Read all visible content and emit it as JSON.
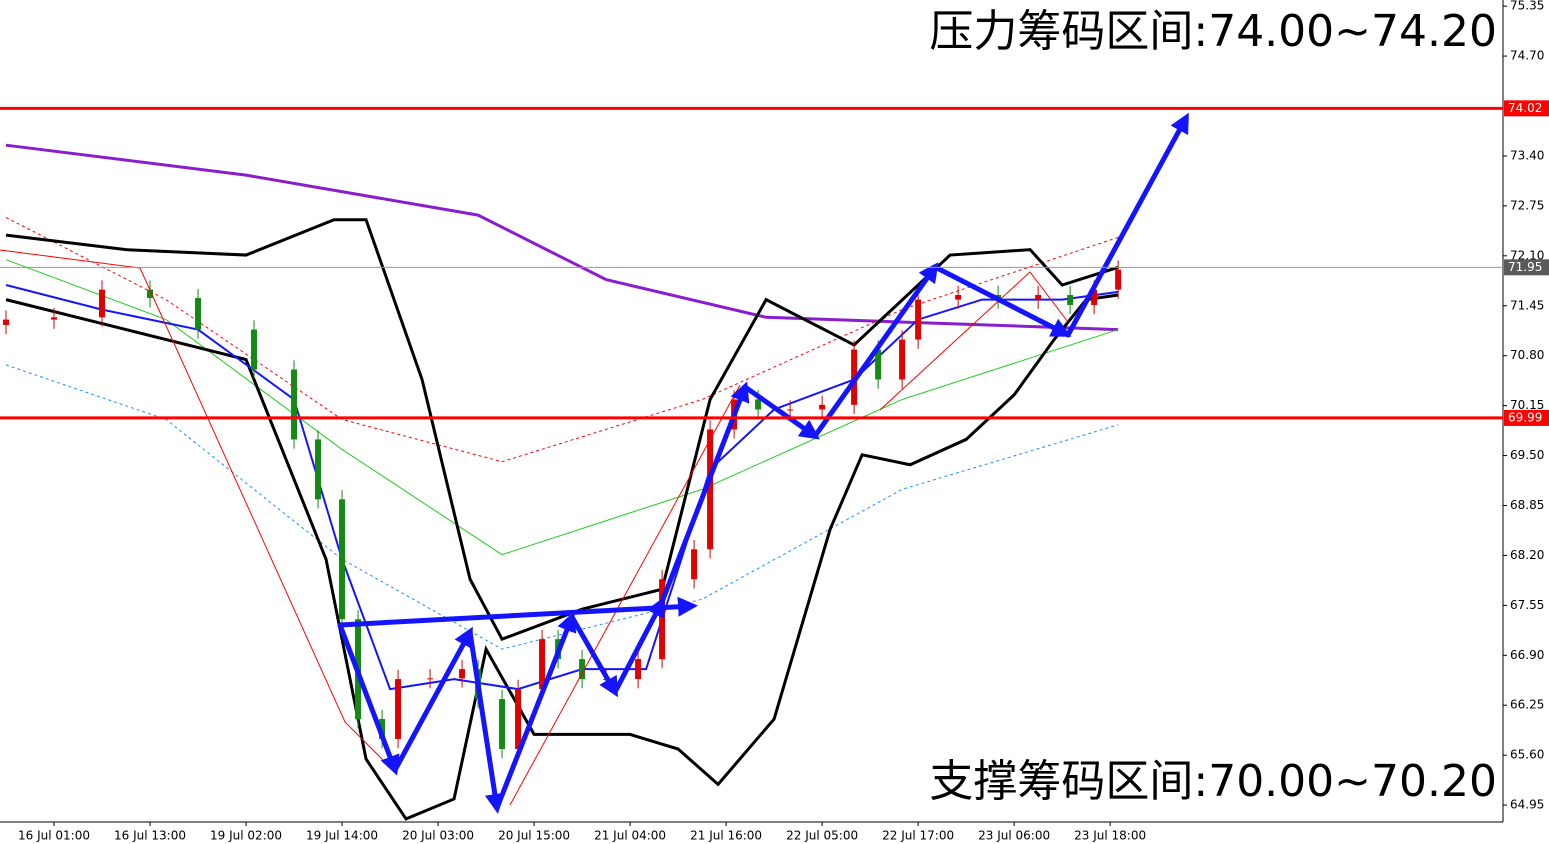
{
  "chart_data": {
    "type": "candlestick",
    "xlim": [
      -0.75,
      187.1
    ],
    "ylim": [
      64.73,
      75.43
    ],
    "yticks": [
      64.95,
      {
        "value": 65.6,
        "label": "65.60"
      },
      66.25,
      {
        "value": 66.9,
        "label": "66.90"
      },
      67.55,
      {
        "value": 68.2,
        "label": "68.20"
      },
      68.85,
      {
        "value": 69.5,
        "label": "69.50"
      },
      70.15,
      {
        "value": 70.8,
        "label": "70.80"
      },
      71.45,
      {
        "value": 72.1,
        "label": "72.10"
      },
      72.75,
      {
        "value": 73.4,
        "label": "73.40"
      },
      {
        "value": 74.7,
        "label": "74.70"
      },
      75.35
    ],
    "xticks": [
      {
        "value": 6,
        "label": "16 Jul 01:00"
      },
      {
        "value": 18,
        "label": "16 Jul 13:00"
      },
      {
        "value": 30,
        "label": "19 Jul 02:00"
      },
      {
        "value": 42,
        "label": "19 Jul 14:00"
      },
      {
        "value": 54,
        "label": "20 Jul 03:00"
      },
      {
        "value": 66,
        "label": "20 Jul 15:00"
      },
      {
        "value": 78,
        "label": "21 Jul 04:00"
      },
      {
        "value": 90,
        "label": "21 Jul 16:00"
      },
      {
        "value": 102,
        "label": "22 Jul 05:00"
      },
      {
        "value": 114,
        "label": "22 Jul 17:00"
      },
      {
        "value": 126,
        "label": "23 Jul 06:00"
      },
      {
        "value": 138,
        "label": "23 Jul 18:00"
      }
    ],
    "up_color": "#e00000",
    "down_color": "#138a13",
    "x": [
      0,
      6,
      12,
      18,
      24,
      31,
      36,
      39,
      42,
      44,
      47,
      49,
      53,
      57,
      59,
      62,
      64,
      67,
      69,
      72,
      75,
      79,
      82,
      86,
      88,
      91,
      94,
      98,
      102,
      106,
      109,
      112,
      114,
      119,
      124,
      129,
      133,
      136,
      139
    ],
    "open": [
      71.2,
      71.27,
      71.3,
      71.66,
      71.55,
      71.14,
      70.62,
      69.71,
      68.93,
      67.37,
      66.07,
      65.81,
      66.59,
      66.6,
      66.72,
      66.33,
      65.68,
      66.46,
      67.11,
      66.85,
      66.59,
      66.59,
      66.85,
      67.89,
      68.28,
      69.84,
      70.23,
      70.1,
      70.1,
      70.16,
      70.88,
      70.49,
      71.01,
      71.53,
      71.59,
      71.53,
      71.59,
      71.46,
      71.66
    ],
    "high": [
      71.39,
      71.42,
      71.78,
      71.78,
      71.67,
      71.26,
      70.74,
      69.83,
      69.05,
      67.49,
      66.19,
      66.71,
      66.72,
      66.84,
      66.84,
      66.45,
      66.58,
      67.23,
      67.23,
      66.97,
      66.71,
      66.97,
      68.01,
      68.4,
      69.96,
      70.35,
      70.35,
      70.22,
      70.28,
      71.0,
      71.0,
      71.13,
      71.65,
      71.71,
      71.71,
      71.71,
      71.71,
      71.78,
      72.04
    ],
    "low": [
      71.08,
      71.15,
      71.18,
      71.43,
      71.02,
      70.5,
      69.59,
      68.81,
      67.25,
      65.95,
      65.69,
      65.69,
      66.47,
      66.48,
      66.21,
      65.56,
      65.56,
      66.34,
      66.73,
      66.47,
      66.47,
      66.47,
      66.73,
      67.77,
      68.16,
      69.72,
      69.98,
      69.98,
      69.98,
      70.04,
      70.37,
      70.37,
      70.89,
      71.41,
      71.41,
      71.41,
      71.34,
      71.34,
      71.54
    ],
    "close": [
      71.27,
      71.3,
      71.66,
      71.55,
      71.14,
      70.62,
      69.71,
      68.93,
      67.37,
      66.07,
      65.81,
      66.59,
      66.6,
      66.72,
      66.33,
      65.68,
      66.46,
      67.11,
      66.85,
      66.59,
      66.59,
      66.85,
      67.89,
      68.28,
      69.84,
      70.23,
      70.1,
      70.1,
      70.16,
      70.88,
      70.49,
      71.01,
      71.53,
      71.59,
      71.53,
      71.59,
      71.46,
      71.66,
      71.92
    ],
    "lines": [
      {
        "color": "#8a1ecf",
        "width": 3,
        "x": [
          0,
          30,
          59,
          75,
          95,
          139
        ],
        "values": [
          73.54,
          73.15,
          72.63,
          71.79,
          71.3,
          71.14
        ]
      },
      {
        "color": "#22cc22",
        "width": 1,
        "x": [
          0,
          20,
          42,
          62,
          87,
          112,
          139
        ],
        "values": [
          72.05,
          71.27,
          69.58,
          68.21,
          69.06,
          70.23,
          71.14
        ]
      },
      {
        "color": "#1e90ff",
        "width": 1,
        "dash": "3,3",
        "x": [
          0,
          20,
          42,
          62,
          87,
          112,
          139
        ],
        "values": [
          70.68,
          69.97,
          68.15,
          66.98,
          67.63,
          69.06,
          69.9
        ]
      },
      {
        "color": "#ff0000",
        "width": 1,
        "dash": "3,3",
        "x": [
          0,
          20,
          42,
          62,
          87,
          112,
          139
        ],
        "values": [
          72.6,
          71.53,
          69.97,
          69.42,
          70.23,
          71.4,
          72.34
        ]
      },
      {
        "color": "#000000",
        "width": 3,
        "x": [
          0,
          15,
          30,
          41,
          45,
          52,
          58,
          62,
          72,
          82,
          88,
          95,
          106,
          118,
          128,
          132,
          139
        ],
        "values": [
          72.37,
          72.18,
          72.11,
          72.57,
          72.57,
          70.49,
          67.89,
          67.11,
          67.5,
          67.76,
          70.23,
          71.53,
          70.94,
          72.11,
          72.18,
          71.72,
          71.95
        ]
      },
      {
        "color": "#000000",
        "width": 3,
        "x": [
          0,
          15,
          30,
          40,
          45,
          50,
          56,
          60,
          66,
          78,
          84,
          89,
          96,
          103,
          107,
          113,
          120,
          126,
          131,
          135,
          139
        ],
        "values": [
          71.53,
          71.14,
          70.75,
          68.15,
          65.55,
          64.77,
          65.03,
          66.98,
          65.87,
          65.87,
          65.68,
          65.22,
          66.07,
          68.54,
          69.51,
          69.38,
          69.71,
          70.29,
          71.01,
          71.53,
          71.59
        ]
      },
      {
        "color": "#1414ff",
        "width": 2,
        "x": [
          0,
          12,
          24,
          36,
          42,
          48,
          56,
          64,
          72,
          80,
          88,
          96,
          106,
          114,
          122,
          132,
          139
        ],
        "values": [
          71.72,
          71.4,
          71.14,
          70.23,
          68.15,
          66.46,
          66.59,
          66.46,
          66.72,
          66.72,
          69.32,
          70.1,
          70.49,
          71.27,
          71.53,
          71.53,
          71.63
        ]
      }
    ],
    "levels": [
      {
        "value": 74.02,
        "color": "#ff0000",
        "width": 3
      },
      {
        "value": 69.99,
        "color": "#ff0000",
        "width": 3
      },
      {
        "value": 71.95,
        "color": "#8a9aa6",
        "width": 1,
        "label_color": "#5a5a5a"
      }
    ],
    "annotations": [
      "压力筹码区间:74.00~74.20",
      "支撑筹码区间:70.00~70.20"
    ]
  }
}
